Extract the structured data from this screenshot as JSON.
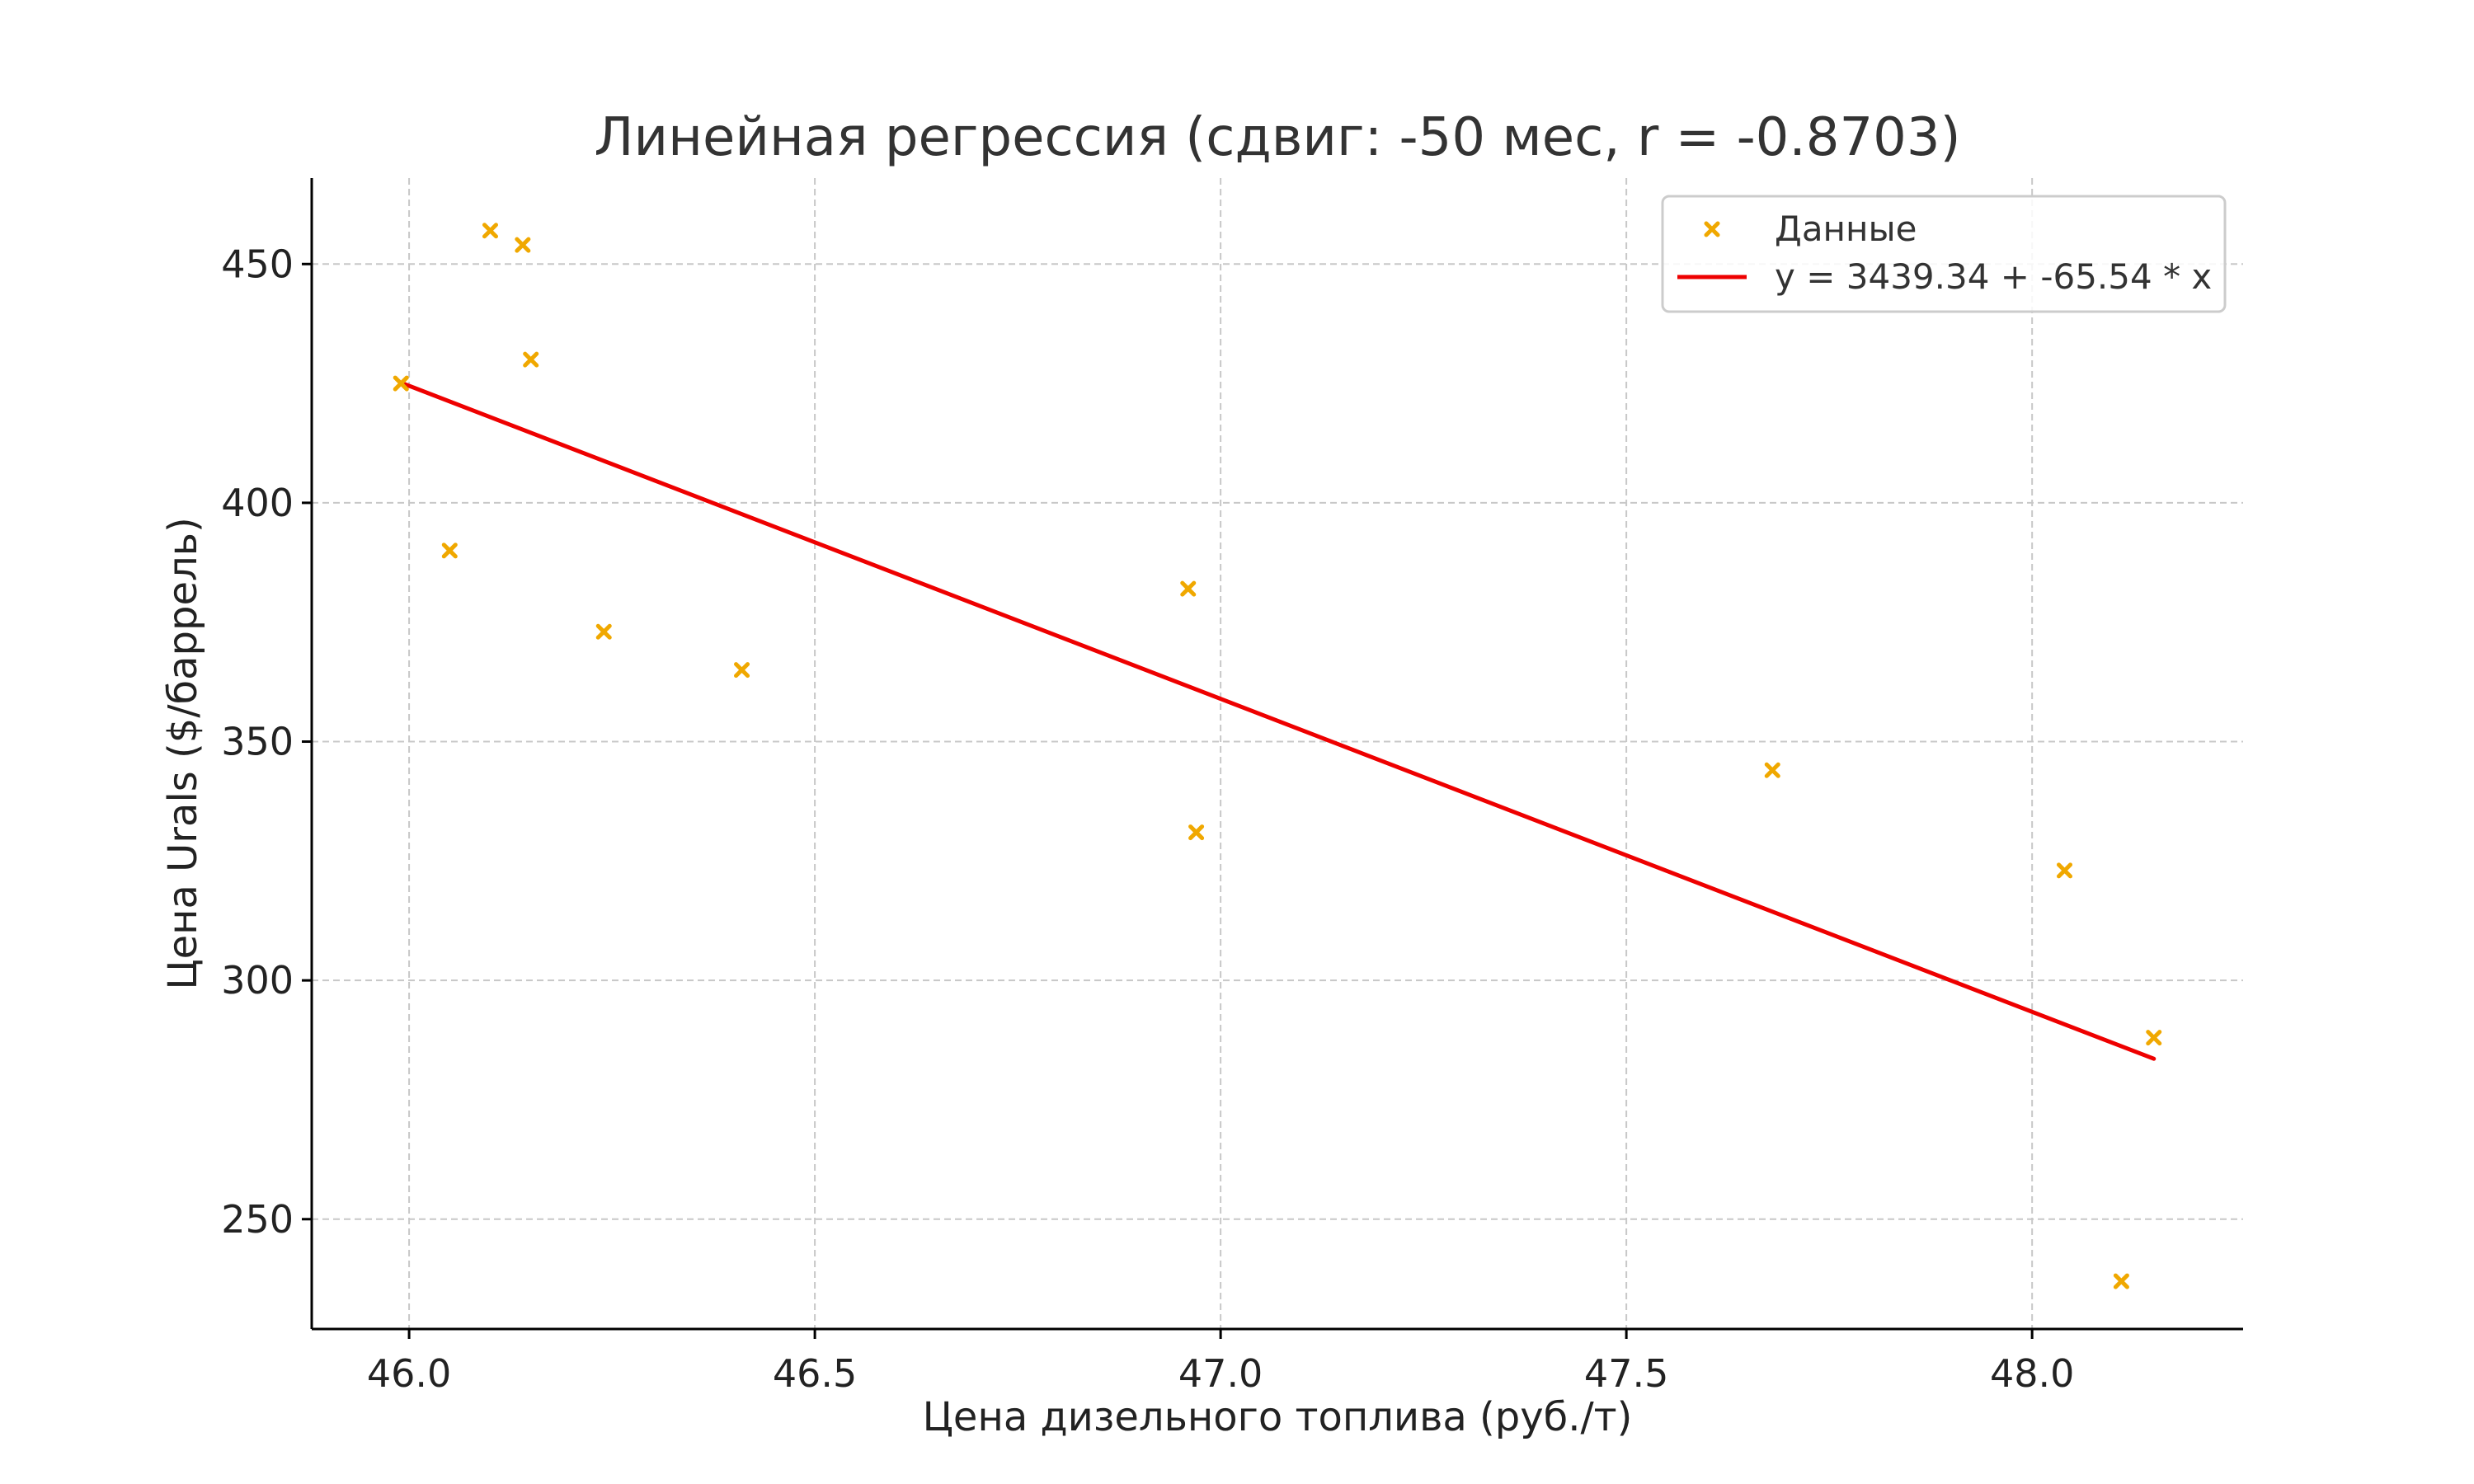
{
  "chart_data": {
    "type": "scatter",
    "title": "Линейная регрессия (сдвиг: -50 мес, r = -0.8703)",
    "xlabel": "Цена дизельного топлива (руб./т)",
    "ylabel": "Цена Urals ($/баррель)",
    "xlim": [
      45.88,
      48.26
    ],
    "ylim": [
      227,
      468
    ],
    "xticks": [
      46.0,
      46.5,
      47.0,
      47.5,
      48.0
    ],
    "xtick_labels": [
      "46.0",
      "46.5",
      "47.0",
      "47.5",
      "48.0"
    ],
    "yticks": [
      250,
      300,
      350,
      400,
      450
    ],
    "ytick_labels": [
      "250",
      "300",
      "350",
      "400",
      "450"
    ],
    "grid": true,
    "legend_position": "top-right",
    "series": [
      {
        "name": "Данные",
        "kind": "scatter",
        "marker": "x",
        "color": "#f0a800",
        "points": [
          {
            "x": 45.99,
            "y": 425
          },
          {
            "x": 46.05,
            "y": 390
          },
          {
            "x": 46.1,
            "y": 457
          },
          {
            "x": 46.14,
            "y": 454
          },
          {
            "x": 46.15,
            "y": 430
          },
          {
            "x": 46.24,
            "y": 373
          },
          {
            "x": 46.41,
            "y": 365
          },
          {
            "x": 46.96,
            "y": 382
          },
          {
            "x": 46.97,
            "y": 331
          },
          {
            "x": 47.68,
            "y": 344
          },
          {
            "x": 48.04,
            "y": 323
          },
          {
            "x": 48.11,
            "y": 237
          },
          {
            "x": 48.15,
            "y": 288
          }
        ]
      },
      {
        "name": "y = 3439.34 + -65.54 * x",
        "kind": "line",
        "color": "#ee0000",
        "intercept": 3439.34,
        "slope": -65.54,
        "x_range": [
          45.99,
          48.15
        ]
      }
    ]
  }
}
